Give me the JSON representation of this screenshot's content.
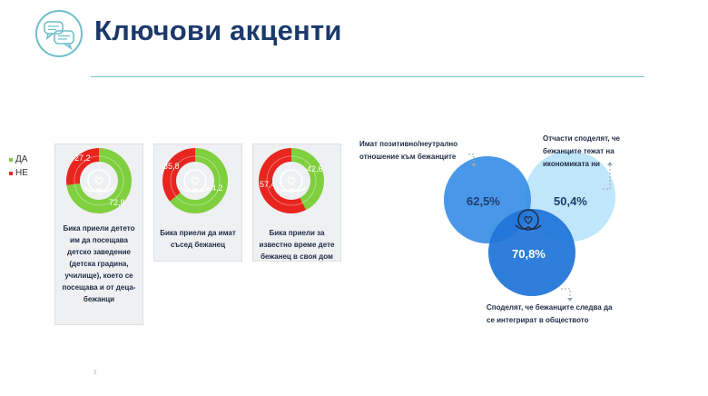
{
  "header": {
    "title": "Ключови акценти",
    "logo_icon": "speech-bubbles-icon"
  },
  "colors": {
    "yes": "#7fcf3f",
    "no": "#e8251f",
    "panel": "#eef0f2",
    "accent": "#1b3a6b",
    "circle_left": "#3a8ee6",
    "circle_right": "#bfe6fb",
    "circle_bottom": "#1f74d8"
  },
  "chart_data": [
    {
      "type": "pie",
      "donut": true,
      "legend": {
        "placement": "left",
        "entries": [
          "ДА",
          "НЕ"
        ]
      },
      "categories": [
        "ДА",
        "НЕ"
      ],
      "values": [
        72.8,
        27.2
      ],
      "labels": [
        "72,8",
        "27,2"
      ],
      "caption": "Бика приели детето им да посещава детско заведение (детска градина, училище), което се посещава и от деца-бежанци"
    },
    {
      "type": "pie",
      "donut": true,
      "categories": [
        "ДА",
        "НЕ"
      ],
      "values": [
        64.2,
        35.8
      ],
      "labels": [
        "64,2",
        "35,8"
      ],
      "caption": "Бика приели да имат съсед бежанец"
    },
    {
      "type": "pie",
      "donut": true,
      "categories": [
        "ДА",
        "НЕ"
      ],
      "values": [
        42.6,
        57.4
      ],
      "labels": [
        "42,6",
        "57,4"
      ],
      "caption": "Бика приели за известно време дете бежанец в своя дом"
    },
    {
      "type": "venn",
      "sets": [
        {
          "label": "62,5%",
          "value": 62.5,
          "caption": "Имат позитивно/неутрално отношение към бежанците"
        },
        {
          "label": "50,4%",
          "value": 50.4,
          "caption": "Отчасти споделят, че бежанците тежат на икономиката ни"
        },
        {
          "label": "70,8%",
          "value": 70.8,
          "caption": "Споделят, че бежанците следва да се интегрират в обществото"
        }
      ]
    }
  ],
  "footer": {
    "page_number": "3"
  }
}
